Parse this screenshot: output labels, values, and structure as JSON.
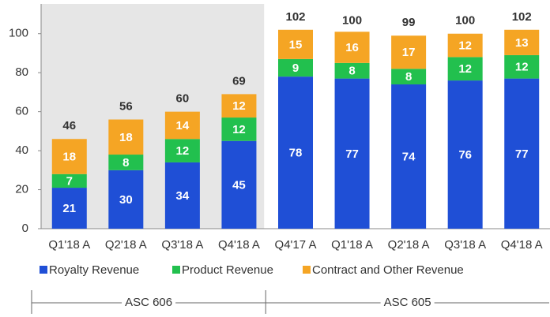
{
  "chart_data": {
    "type": "stacked_bar",
    "categories": [
      "Q1'18 A",
      "Q2'18 A",
      "Q3'18 A",
      "Q4'18 A",
      "Q4'17 A",
      "Q1'18 A",
      "Q2'18 A",
      "Q3'18 A",
      "Q4'18 A"
    ],
    "series": [
      {
        "name": "Royalty Revenue",
        "color": "#1f4fd6",
        "values": [
          21,
          30,
          34,
          45,
          78,
          77,
          74,
          76,
          77
        ]
      },
      {
        "name": "Product Revenue",
        "color": "#22c04e",
        "values": [
          7,
          8,
          12,
          12,
          9,
          8,
          8,
          12,
          12
        ]
      },
      {
        "name": "Contract and Other Revenue",
        "color": "#f5a524",
        "values": [
          18,
          18,
          14,
          12,
          15,
          16,
          17,
          12,
          13
        ]
      }
    ],
    "totals": [
      46,
      56,
      60,
      69,
      102,
      100,
      99,
      100,
      102
    ],
    "groups": [
      {
        "label": "ASC 606",
        "span": 4,
        "shaded": true
      },
      {
        "label": "ASC 605",
        "span": 5,
        "shaded": false
      }
    ],
    "ylim": [
      0,
      110
    ],
    "yticks": [
      0,
      20,
      40,
      60,
      80,
      100
    ],
    "grid": false
  }
}
